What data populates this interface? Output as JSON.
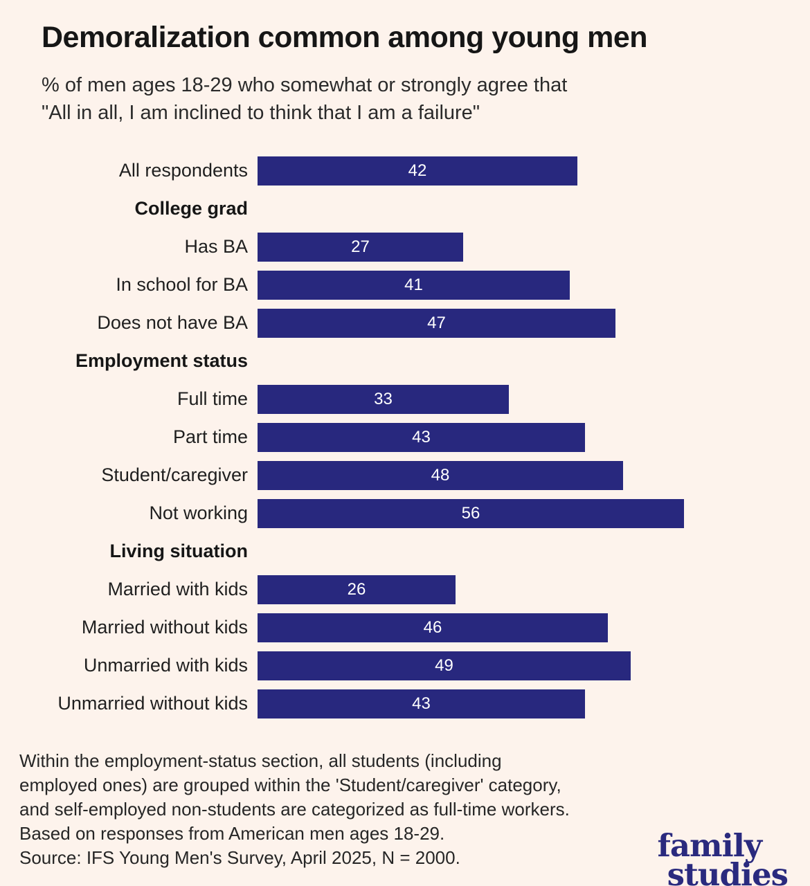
{
  "header": {
    "title": "Demoralization common among young men",
    "subtitle": "% of men ages 18-29 who somewhat or strongly agree that\n\"All in all, I am inclined to think that I am a failure\""
  },
  "chart_data": {
    "type": "bar",
    "orientation": "horizontal",
    "value_axis_max": 56,
    "bar_color": "#28287e",
    "value_label_color": "#ffffff",
    "grid": false,
    "legend": false,
    "rows": [
      {
        "kind": "bar",
        "label": "All respondents",
        "value": 42
      },
      {
        "kind": "header",
        "label": "College grad"
      },
      {
        "kind": "bar",
        "label": "Has BA",
        "value": 27
      },
      {
        "kind": "bar",
        "label": "In school for BA",
        "value": 41
      },
      {
        "kind": "bar",
        "label": "Does not have BA",
        "value": 47
      },
      {
        "kind": "header",
        "label": "Employment status"
      },
      {
        "kind": "bar",
        "label": "Full time",
        "value": 33
      },
      {
        "kind": "bar",
        "label": "Part time",
        "value": 43
      },
      {
        "kind": "bar",
        "label": "Student/caregiver",
        "value": 48
      },
      {
        "kind": "bar",
        "label": "Not working",
        "value": 56
      },
      {
        "kind": "header",
        "label": "Living situation"
      },
      {
        "kind": "bar",
        "label": "Married with kids",
        "value": 26
      },
      {
        "kind": "bar",
        "label": "Married without kids",
        "value": 46
      },
      {
        "kind": "bar",
        "label": "Unmarried with kids",
        "value": 49
      },
      {
        "kind": "bar",
        "label": "Unmarried without kids",
        "value": 43
      }
    ]
  },
  "footer": {
    "note": "Within the employment-status section, all students (including\nemployed ones) are grouped within the 'Student/caregiver' category,\nand self-employed non-students are categorized as full-time workers.\nBased on responses from American men ages 18-29.\nSource: IFS Young Men's Survey, April 2025, N = 2000.",
    "logo_line1": "family",
    "logo_line2": "studies"
  }
}
